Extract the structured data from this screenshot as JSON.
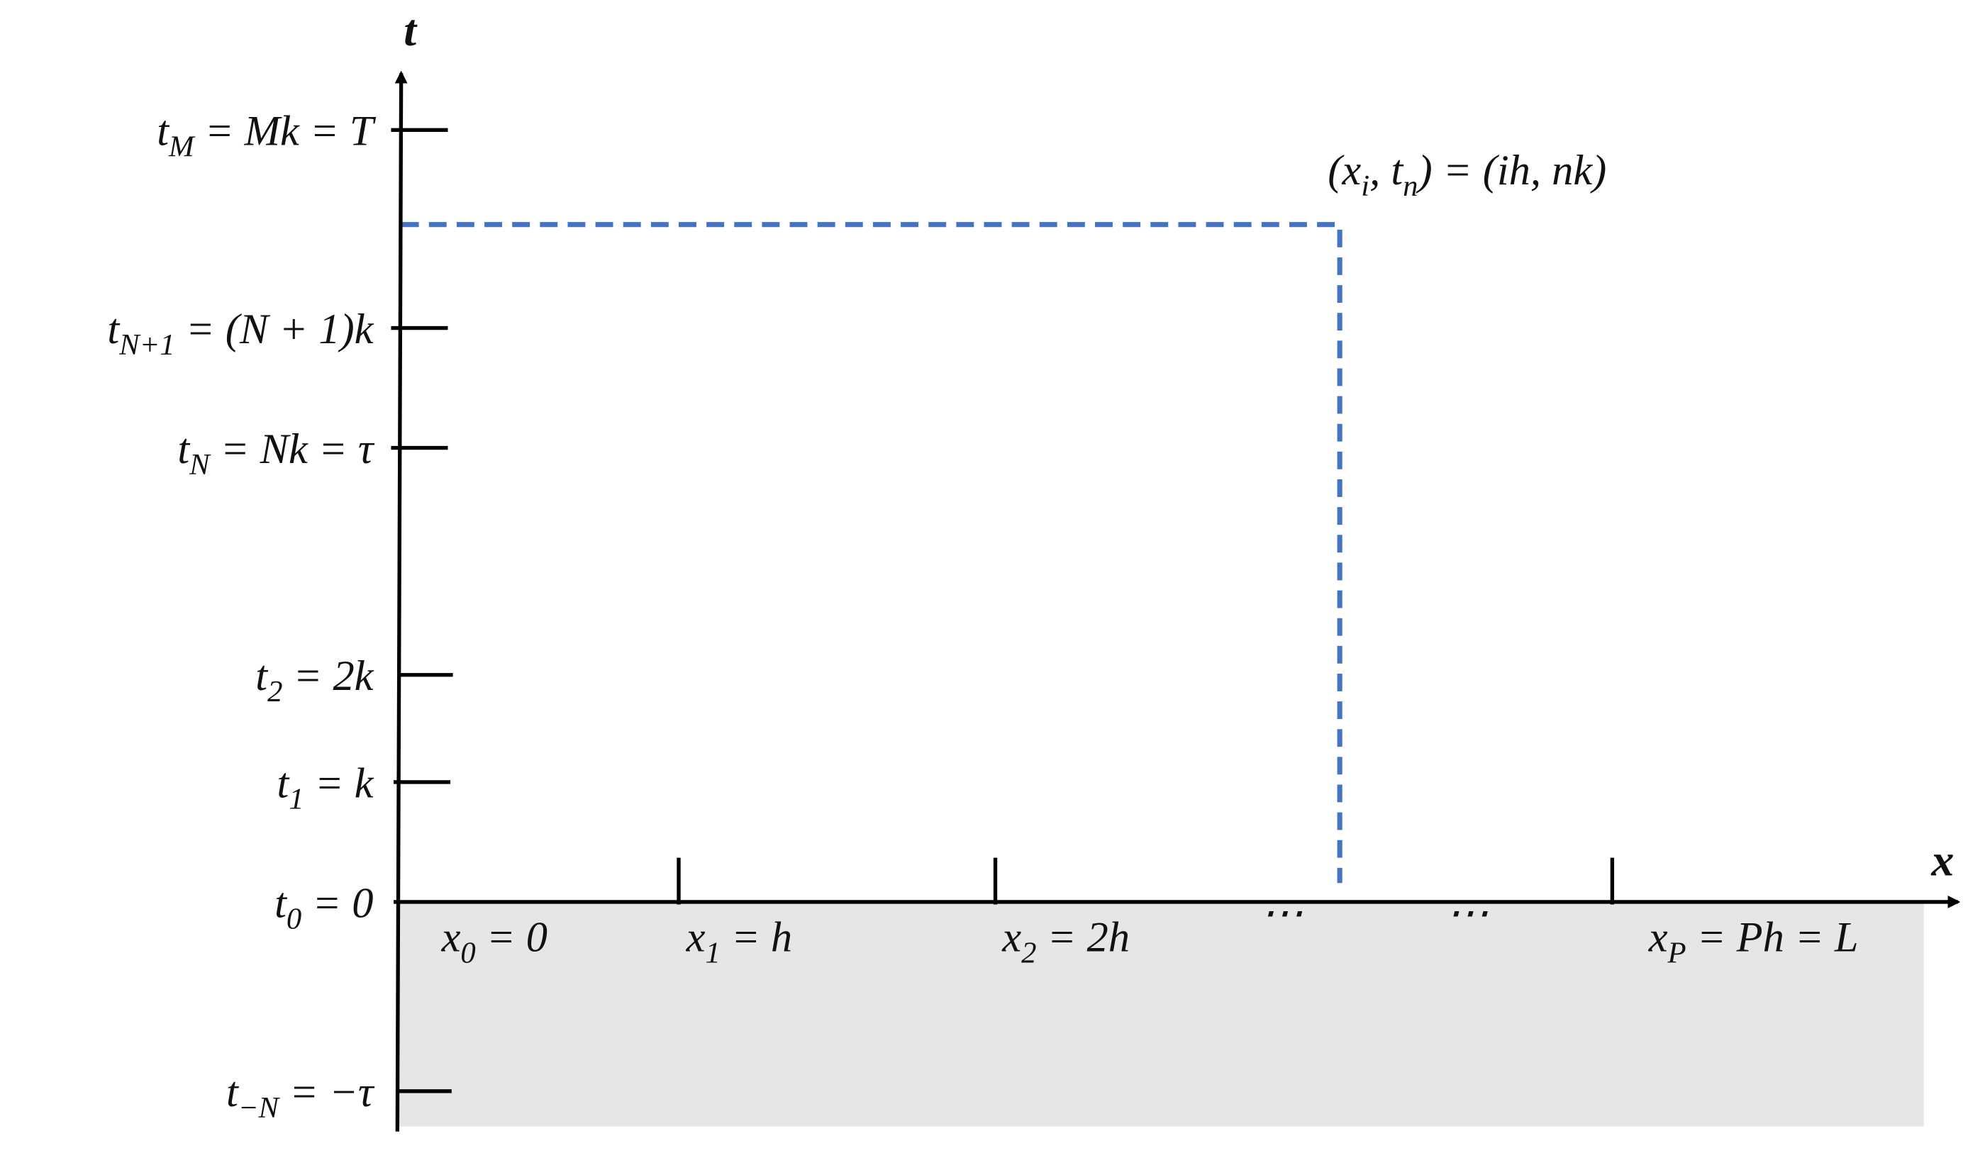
{
  "axes": {
    "t_label": "t",
    "x_label": "x"
  },
  "t_ticks": [
    {
      "parts": [
        {
          "text": "t"
        },
        {
          "sub": "M"
        },
        {
          "text": " = Mk = T"
        }
      ]
    },
    {
      "parts": [
        {
          "text": "t"
        },
        {
          "sub": "N+1"
        },
        {
          "text": " = (N + 1)k"
        }
      ]
    },
    {
      "parts": [
        {
          "text": "t"
        },
        {
          "sub": "N"
        },
        {
          "text": " = Nk = τ"
        }
      ]
    },
    {
      "parts": [
        {
          "text": "t"
        },
        {
          "sub": "2"
        },
        {
          "text": " = 2k"
        }
      ]
    },
    {
      "parts": [
        {
          "text": "t"
        },
        {
          "sub": "1"
        },
        {
          "text": " = k"
        }
      ]
    },
    {
      "parts": [
        {
          "text": "t"
        },
        {
          "sub": "0"
        },
        {
          "text": " = 0"
        }
      ]
    },
    {
      "parts": [
        {
          "text": "t"
        },
        {
          "sub": "−N"
        },
        {
          "text": " = −τ"
        }
      ]
    }
  ],
  "x_ticks": [
    {
      "parts": [
        {
          "text": "x"
        },
        {
          "sub": "0"
        },
        {
          "text": " = 0"
        }
      ]
    },
    {
      "parts": [
        {
          "text": "x"
        },
        {
          "sub": "1"
        },
        {
          "text": " = h"
        }
      ]
    },
    {
      "parts": [
        {
          "text": "x"
        },
        {
          "sub": "2"
        },
        {
          "text": " = 2h"
        }
      ]
    },
    {
      "parts": [
        {
          "text": "x"
        },
        {
          "sub": "P"
        },
        {
          "text": " = Ph = L"
        }
      ]
    }
  ],
  "ellipses": [
    "⋯",
    "⋯"
  ],
  "point_label": {
    "parts": [
      {
        "text": "(x"
      },
      {
        "sub": "i"
      },
      {
        "text": ", t"
      },
      {
        "sub": "n"
      },
      {
        "text": ") = (ih, nk)"
      }
    ]
  }
}
